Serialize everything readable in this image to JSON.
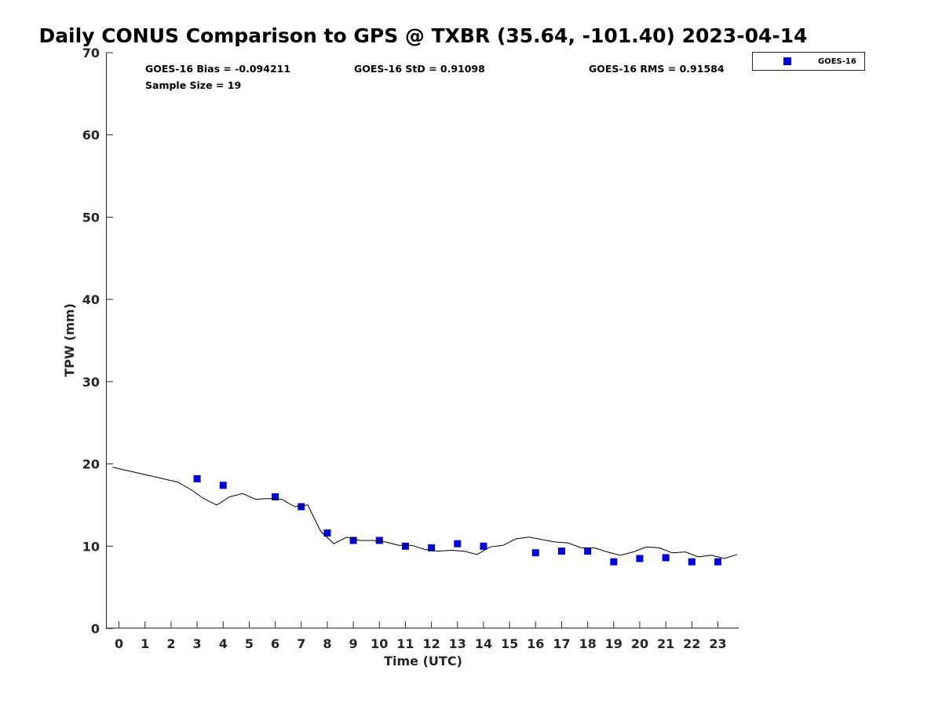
{
  "chart_data": {
    "type": "scatter",
    "title": "Daily CONUS Comparison to GPS @ TXBR (35.64, -101.40) 2023-04-14",
    "xlabel": "Time (UTC)",
    "ylabel": "TPW (mm)",
    "xlim": [
      -0.5,
      23.8
    ],
    "ylim": [
      0,
      70
    ],
    "x_ticks": [
      0,
      1,
      2,
      3,
      4,
      5,
      6,
      7,
      8,
      9,
      10,
      11,
      12,
      13,
      14,
      15,
      16,
      17,
      18,
      19,
      20,
      21,
      22,
      23
    ],
    "y_ticks": [
      0,
      10,
      20,
      30,
      40,
      50,
      60,
      70
    ],
    "grid": false,
    "legend_position": "outside-top-right",
    "stats": {
      "bias": "GOES-16 Bias = -0.094211",
      "std": "GOES-16 StD = 0.91098",
      "rms": "GOES-16 RMS = 0.91584",
      "sample": "Sample Size = 19"
    },
    "series": [
      {
        "name": "GOES-16",
        "style": "markers",
        "color": "#0000dd",
        "x": [
          3,
          4,
          6,
          7,
          8,
          9,
          10,
          11,
          12,
          13,
          14,
          16,
          17,
          18,
          19,
          20,
          21,
          22,
          23
        ],
        "y": [
          18.2,
          17.4,
          16.0,
          14.8,
          11.6,
          10.7,
          10.7,
          10.0,
          9.8,
          10.3,
          10.0,
          9.2,
          9.4,
          9.4,
          8.1,
          8.5,
          8.6,
          8.1,
          8.1
        ]
      },
      {
        "style": "line",
        "color": "#000000",
        "x": [
          -0.25,
          2.25,
          2.75,
          3.25,
          3.75,
          4.25,
          4.75,
          5.25,
          5.75,
          6.25,
          6.75,
          7.25,
          7.75,
          8.25,
          8.75,
          9.25,
          9.75,
          10.25,
          10.75,
          11.25,
          11.75,
          12.25,
          12.75,
          13.25,
          13.75,
          14.25,
          14.75,
          15.25,
          15.75,
          16.25,
          16.75,
          17.25,
          17.75,
          18.25,
          18.75,
          19.25,
          19.75,
          20.25,
          20.75,
          21.25,
          21.75,
          22.25,
          22.75,
          23.25,
          23.75
        ],
        "y": [
          19.6,
          17.8,
          16.9,
          15.8,
          15.0,
          16.0,
          16.4,
          15.7,
          15.8,
          15.7,
          14.8,
          15.0,
          11.8,
          10.3,
          11.1,
          10.7,
          10.7,
          10.5,
          10.1,
          10.1,
          9.6,
          9.4,
          9.5,
          9.4,
          9.0,
          9.9,
          10.1,
          10.9,
          11.1,
          10.8,
          10.5,
          10.4,
          9.8,
          9.8,
          9.3,
          8.9,
          9.3,
          9.9,
          9.8,
          9.2,
          9.3,
          8.7,
          8.9,
          8.5,
          9.0
        ]
      }
    ]
  }
}
